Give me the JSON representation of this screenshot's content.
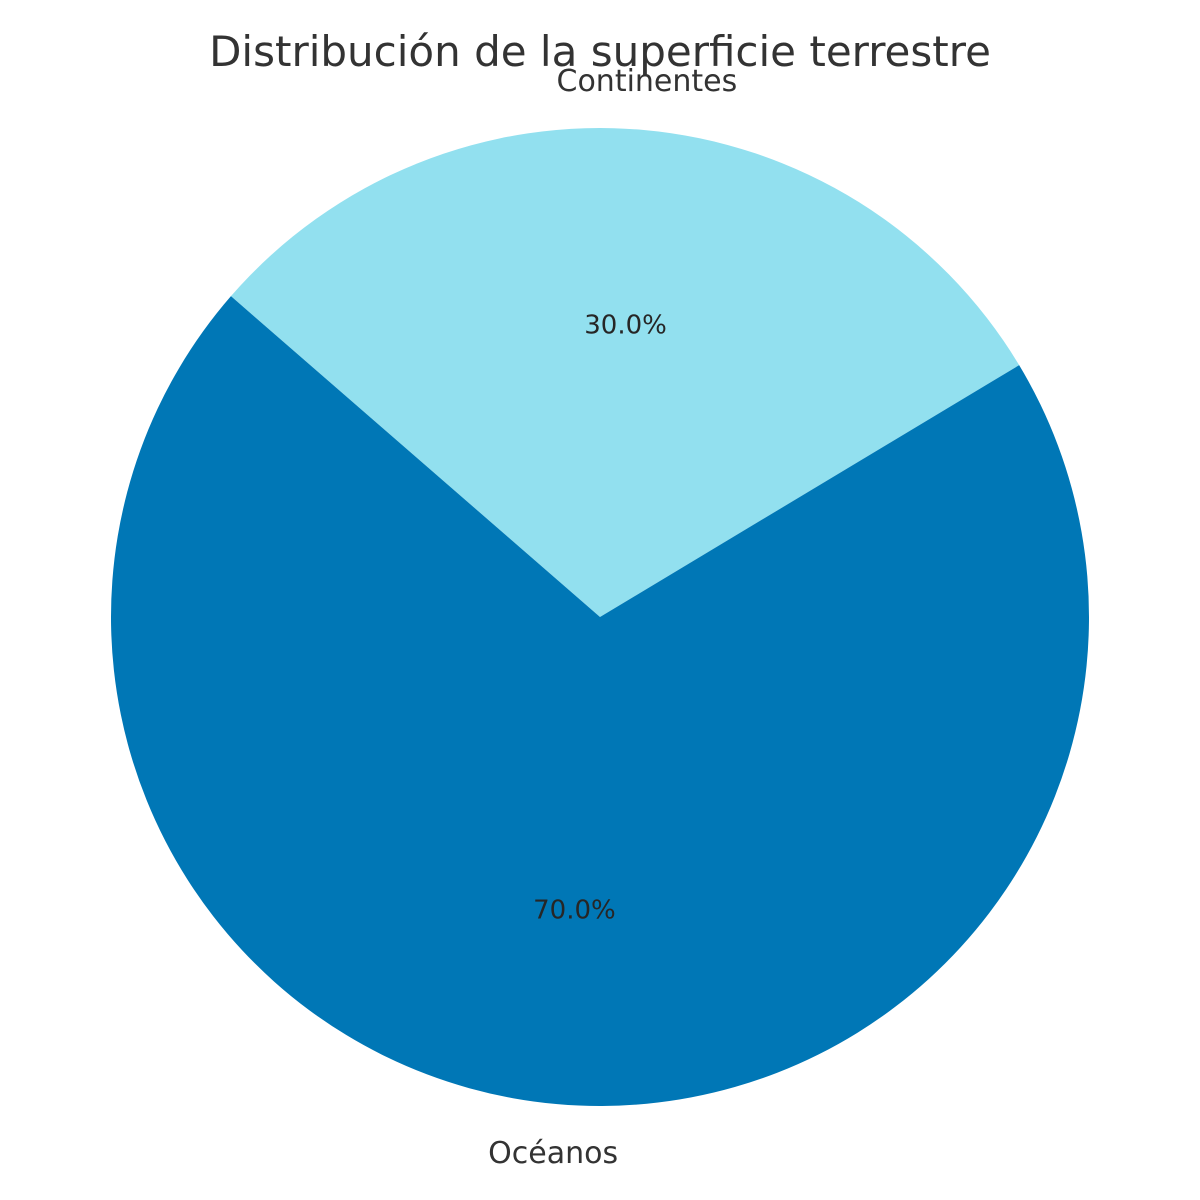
{
  "chart_data": {
    "type": "pie",
    "title": "Distribución de la superficie terrestre",
    "categories": [
      "Continentes",
      "Océanos"
    ],
    "values": [
      30.0,
      70.0
    ],
    "percent_labels": [
      "30.0%",
      "70.0%"
    ],
    "colors": [
      "#92e0ef",
      "#0077b6"
    ],
    "text_color": "#333333",
    "background": "#ffffff"
  }
}
